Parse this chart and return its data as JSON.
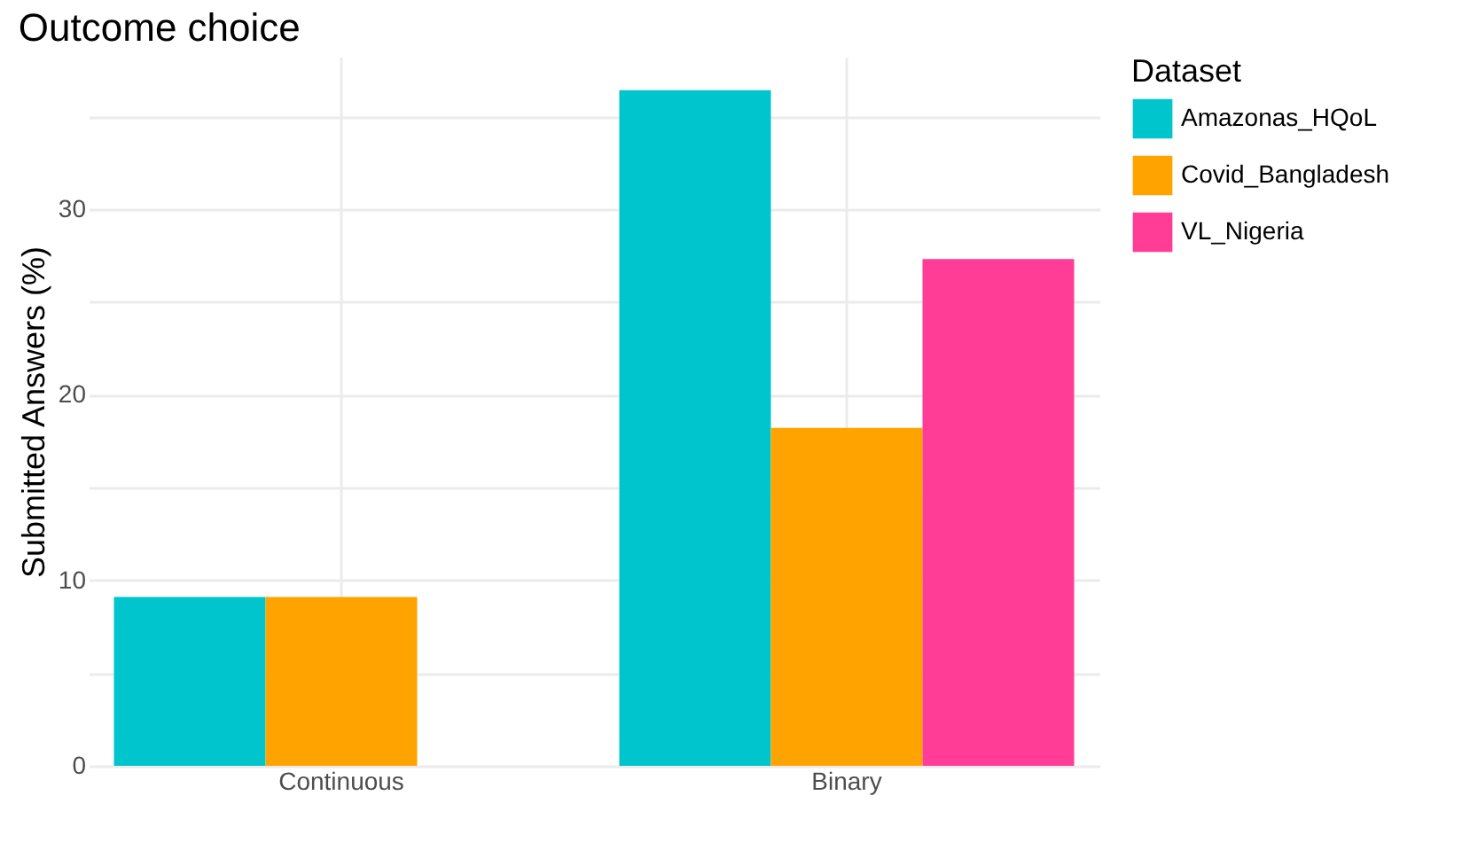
{
  "chart_data": {
    "type": "bar",
    "title": "Outcome choice",
    "ylabel": "Submitted Answers (%)",
    "legend_title": "Dataset",
    "categories": [
      "Continuous",
      "Binary"
    ],
    "series": [
      {
        "name": "Amazonas_HQoL",
        "color": "#00c5cc",
        "values": [
          9.1,
          36.4
        ]
      },
      {
        "name": "Covid_Bangladesh",
        "color": "#ffa300",
        "values": [
          9.1,
          18.2
        ]
      },
      {
        "name": "VL_Nigeria",
        "color": "#ff3c96",
        "values": [
          null,
          27.3
        ]
      }
    ],
    "ylim": [
      0,
      38.2
    ],
    "yticks": [
      0,
      {
        "value": 5,
        "label": null
      },
      10,
      {
        "value": 15,
        "label": null
      },
      20,
      {
        "value": 25,
        "label": null
      },
      30,
      {
        "value": 35,
        "label": null
      }
    ],
    "grid": true,
    "legend": "right"
  }
}
